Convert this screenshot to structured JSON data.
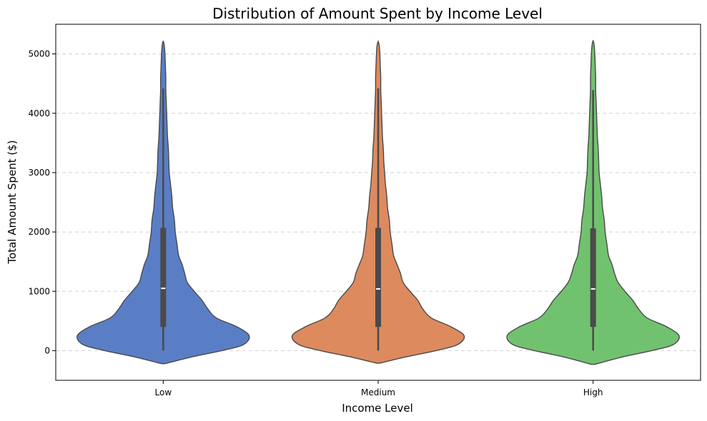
{
  "chart_data": {
    "type": "violin",
    "title": "Distribution of Amount Spent by Income Level",
    "xlabel": "Income Level",
    "ylabel": "Total Amount Spent ($)",
    "categories": [
      "Low",
      "Medium",
      "High"
    ],
    "ylim": [
      -500,
      5500
    ],
    "yticks": [
      0,
      1000,
      2000,
      3000,
      4000,
      5000
    ],
    "grid": {
      "y": true,
      "style": "dashed"
    },
    "colors": {
      "Low": "#5a7ec6",
      "Medium": "#dd8a5e",
      "High": "#71c26f",
      "outline": "#4a4a4a",
      "box": "#4a4a4a",
      "median": "#ffffff"
    },
    "violins": [
      {
        "category": "Low",
        "min": 0,
        "q1": 400,
        "median": 1050,
        "q3": 2070,
        "whisker_high": 4420,
        "max": 5220,
        "density": [
          [
            -220,
            0.02
          ],
          [
            -100,
            0.35
          ],
          [
            0,
            0.68
          ],
          [
            100,
            0.93
          ],
          [
            250,
            1.0
          ],
          [
            400,
            0.86
          ],
          [
            550,
            0.62
          ],
          [
            700,
            0.52
          ],
          [
            850,
            0.45
          ],
          [
            1000,
            0.36
          ],
          [
            1150,
            0.28
          ],
          [
            1300,
            0.25
          ],
          [
            1450,
            0.22
          ],
          [
            1600,
            0.18
          ],
          [
            1800,
            0.16
          ],
          [
            2000,
            0.14
          ],
          [
            2200,
            0.13
          ],
          [
            2400,
            0.11
          ],
          [
            2600,
            0.1
          ],
          [
            2800,
            0.085
          ],
          [
            3000,
            0.07
          ],
          [
            3200,
            0.065
          ],
          [
            3400,
            0.06
          ],
          [
            3600,
            0.05
          ],
          [
            3800,
            0.045
          ],
          [
            4000,
            0.04
          ],
          [
            4200,
            0.035
          ],
          [
            4400,
            0.03
          ],
          [
            4600,
            0.03
          ],
          [
            4800,
            0.025
          ],
          [
            5000,
            0.02
          ],
          [
            5150,
            0.012
          ],
          [
            5220,
            0.0
          ]
        ]
      },
      {
        "category": "Medium",
        "min": 0,
        "q1": 400,
        "median": 1040,
        "q3": 2070,
        "whisker_high": 4420,
        "max": 5210,
        "density": [
          [
            -210,
            0.02
          ],
          [
            -100,
            0.34
          ],
          [
            0,
            0.67
          ],
          [
            100,
            0.92
          ],
          [
            250,
            1.0
          ],
          [
            400,
            0.85
          ],
          [
            550,
            0.62
          ],
          [
            700,
            0.52
          ],
          [
            850,
            0.46
          ],
          [
            1000,
            0.37
          ],
          [
            1150,
            0.29
          ],
          [
            1300,
            0.26
          ],
          [
            1450,
            0.22
          ],
          [
            1600,
            0.18
          ],
          [
            1800,
            0.16
          ],
          [
            2000,
            0.14
          ],
          [
            2200,
            0.13
          ],
          [
            2400,
            0.11
          ],
          [
            2600,
            0.1
          ],
          [
            2800,
            0.085
          ],
          [
            3000,
            0.075
          ],
          [
            3200,
            0.065
          ],
          [
            3400,
            0.06
          ],
          [
            3600,
            0.05
          ],
          [
            3800,
            0.045
          ],
          [
            4000,
            0.04
          ],
          [
            4200,
            0.035
          ],
          [
            4400,
            0.03
          ],
          [
            4600,
            0.03
          ],
          [
            4800,
            0.025
          ],
          [
            5000,
            0.02
          ],
          [
            5150,
            0.012
          ],
          [
            5210,
            0.0
          ]
        ]
      },
      {
        "category": "High",
        "min": 0,
        "q1": 400,
        "median": 1040,
        "q3": 2060,
        "whisker_high": 4390,
        "max": 5230,
        "density": [
          [
            -230,
            0.02
          ],
          [
            -100,
            0.36
          ],
          [
            0,
            0.68
          ],
          [
            100,
            0.93
          ],
          [
            250,
            1.0
          ],
          [
            400,
            0.86
          ],
          [
            550,
            0.63
          ],
          [
            700,
            0.53
          ],
          [
            850,
            0.46
          ],
          [
            1000,
            0.37
          ],
          [
            1150,
            0.29
          ],
          [
            1300,
            0.25
          ],
          [
            1450,
            0.22
          ],
          [
            1600,
            0.18
          ],
          [
            1800,
            0.16
          ],
          [
            2000,
            0.14
          ],
          [
            2200,
            0.13
          ],
          [
            2400,
            0.11
          ],
          [
            2600,
            0.1
          ],
          [
            2800,
            0.085
          ],
          [
            3000,
            0.07
          ],
          [
            3200,
            0.065
          ],
          [
            3400,
            0.06
          ],
          [
            3600,
            0.05
          ],
          [
            3800,
            0.045
          ],
          [
            4000,
            0.04
          ],
          [
            4200,
            0.035
          ],
          [
            4400,
            0.03
          ],
          [
            4600,
            0.03
          ],
          [
            4800,
            0.025
          ],
          [
            5000,
            0.02
          ],
          [
            5150,
            0.012
          ],
          [
            5230,
            0.0
          ]
        ]
      }
    ]
  }
}
